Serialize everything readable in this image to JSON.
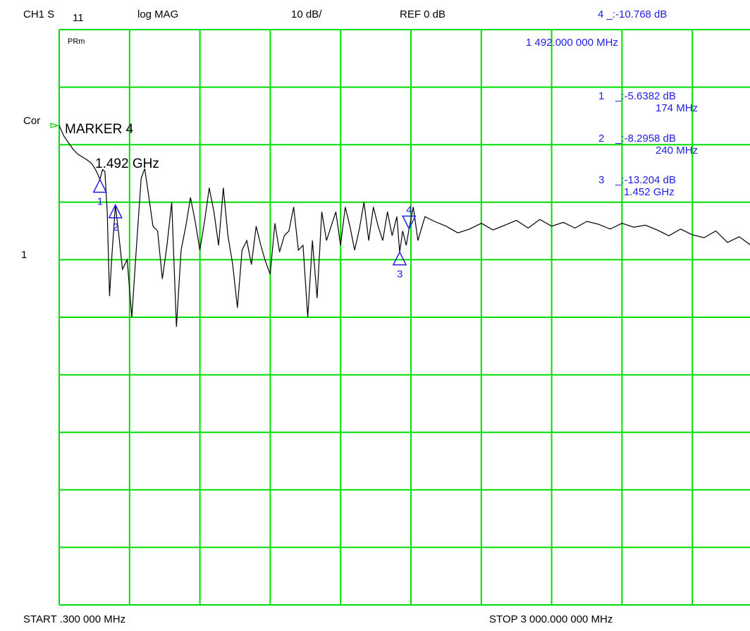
{
  "header": {
    "channel": "CH1 S",
    "param": "11",
    "format": "log MAG",
    "scale": "10 dB/",
    "ref": "REF 0 dB",
    "active_marker_readout": "4 _:-10.768 dB",
    "active_marker_freq": "1 492.000 000 MHz"
  },
  "left_panel": {
    "cor_label": "Cor",
    "channel_marker": "1",
    "avg_label": "PRm"
  },
  "marker_info": {
    "title": "MARKER 4",
    "freq": "1.492 GHz"
  },
  "marker_table": [
    {
      "id": "1",
      "value": "_:-5.6382 dB",
      "freq": "174 MHz"
    },
    {
      "id": "2",
      "value": "_:-8.2958 dB",
      "freq": "240 MHz"
    },
    {
      "id": "3",
      "value": "_:-13.204 dB",
      "freq": "1.452 GHz"
    }
  ],
  "footer": {
    "start": "START   .300 000 MHz",
    "stop": "STOP 3 000.000 000 MHz"
  },
  "colors": {
    "grid": "#00dd00",
    "trace": "#000000",
    "marker": "#1e1ee6",
    "ref_arrow": "#00cc00"
  },
  "chart_data": {
    "type": "line",
    "xlabel": "",
    "ylabel": "",
    "x_unit": "MHz",
    "y_unit": "dB",
    "xlim": [
      0.3,
      3000
    ],
    "ylim": [
      -50,
      10
    ],
    "grid": true,
    "series": [
      {
        "x": [
          0.3,
          20,
          40,
          60,
          80,
          100,
          120,
          140,
          155,
          165,
          174,
          185,
          195,
          205,
          215,
          225,
          240,
          255,
          270,
          290,
          310,
          330,
          350,
          365,
          380,
          400,
          420,
          440,
          460,
          480,
          500,
          520,
          540,
          560,
          580,
          600,
          620,
          640,
          660,
          680,
          700,
          720,
          740,
          760,
          780,
          800,
          820,
          840,
          860,
          880,
          900,
          920,
          940,
          960,
          980,
          1000,
          1020,
          1040,
          1060,
          1080,
          1100,
          1120,
          1140,
          1160,
          1180,
          1200,
          1220,
          1240,
          1260,
          1280,
          1300,
          1320,
          1340,
          1360,
          1380,
          1400,
          1420,
          1440,
          1452,
          1465,
          1480,
          1492,
          1510,
          1530,
          1560,
          1600,
          1650,
          1700,
          1750,
          1800,
          1850,
          1900,
          1950,
          2000,
          2050,
          2100,
          2150,
          2200,
          2250,
          2300,
          2350,
          2400,
          2450,
          2500,
          2550,
          2600,
          2650,
          2700,
          2750,
          2800,
          2850,
          2900,
          2950,
          3000
        ],
        "y": [
          0,
          -1.1,
          -1.8,
          -2.5,
          -3,
          -3.3,
          -3.6,
          -4,
          -4.6,
          -5.1,
          -5.64,
          -4.6,
          -4.8,
          -9,
          -17.8,
          -13.5,
          -8.3,
          -11.5,
          -15,
          -14,
          -20,
          -12.5,
          -5.5,
          -4.5,
          -7,
          -10.5,
          -11,
          -16,
          -12.5,
          -8,
          -21,
          -13,
          -10.5,
          -7.5,
          -10,
          -13,
          -10,
          -6.5,
          -9,
          -12.5,
          -6.5,
          -11.5,
          -14.5,
          -19,
          -13,
          -12,
          -14.5,
          -10.5,
          -12.5,
          -14.2,
          -15.5,
          -10.2,
          -13.2,
          -11.5,
          -11,
          -8.5,
          -13,
          -12.5,
          -20,
          -12,
          -18,
          -9,
          -12,
          -10.5,
          -9,
          -12.5,
          -8.5,
          -10.5,
          -13,
          -10.8,
          -8,
          -12,
          -8.5,
          -10.5,
          -12,
          -9,
          -11.5,
          -9.5,
          -13.2,
          -11,
          -12.5,
          -10.8,
          -8.5,
          -12,
          -9.5,
          -10,
          -10.5,
          -11.2,
          -10.8,
          -10.2,
          -10.9,
          -10.4,
          -9.9,
          -10.7,
          -9.8,
          -10.5,
          -10.1,
          -10.7,
          -10,
          -10.3,
          -10.8,
          -10.2,
          -10.6,
          -10.4,
          -10.9,
          -11.5,
          -10.8,
          -11.4,
          -11.7,
          -11,
          -12.2,
          -11.6,
          -12.5,
          -11.8
        ]
      }
    ],
    "markers": [
      {
        "id": "1",
        "x": 174,
        "y": -5.6382,
        "direction": "up"
      },
      {
        "id": "2",
        "x": 240,
        "y": -8.2958,
        "direction": "up"
      },
      {
        "id": "3",
        "x": 1452,
        "y": -13.204,
        "direction": "up"
      },
      {
        "id": "4",
        "x": 1492,
        "y": -10.768,
        "direction": "down"
      }
    ]
  }
}
